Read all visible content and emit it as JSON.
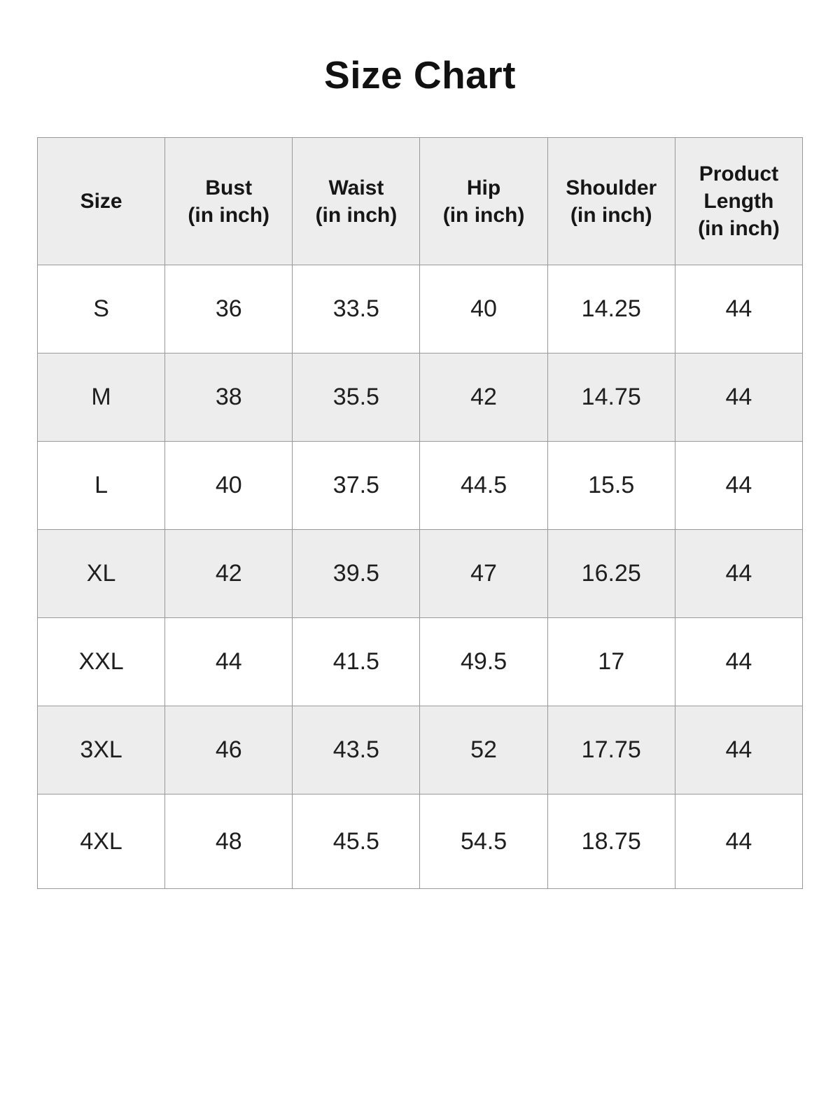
{
  "page": {
    "title": "Size Chart"
  },
  "colors": {
    "background": "#ffffff",
    "header_row_bg": "#ededed",
    "alt_row_bg": "#ededed",
    "row_bg": "#ffffff",
    "border": "#999999",
    "text": "#1f1f1f"
  },
  "size_chart": {
    "columns": [
      {
        "name": "Size",
        "unit": ""
      },
      {
        "name": "Bust",
        "unit": "(in inch)"
      },
      {
        "name": "Waist",
        "unit": "(in inch)"
      },
      {
        "name": "Hip",
        "unit": "(in inch)"
      },
      {
        "name": "Shoulder",
        "unit": "(in inch)"
      },
      {
        "name": "Product Length",
        "unit": "(in inch)"
      }
    ],
    "rows": [
      {
        "cells": [
          "S",
          "36",
          "33.5",
          "40",
          "14.25",
          "44"
        ]
      },
      {
        "cells": [
          "M",
          "38",
          "35.5",
          "42",
          "14.75",
          "44"
        ]
      },
      {
        "cells": [
          "L",
          "40",
          "37.5",
          "44.5",
          "15.5",
          "44"
        ]
      },
      {
        "cells": [
          "XL",
          "42",
          "39.5",
          "47",
          "16.25",
          "44"
        ]
      },
      {
        "cells": [
          "XXL",
          "44",
          "41.5",
          "49.5",
          "17",
          "44"
        ]
      },
      {
        "cells": [
          "3XL",
          "46",
          "43.5",
          "52",
          "17.75",
          "44"
        ]
      },
      {
        "cells": [
          "4XL",
          "48",
          "45.5",
          "54.5",
          "18.75",
          "44"
        ]
      }
    ]
  },
  "chart_data": {
    "type": "table",
    "title": "Size Chart",
    "columns": [
      "Size",
      "Bust (in inch)",
      "Waist (in inch)",
      "Hip (in inch)",
      "Shoulder (in inch)",
      "Product Length (in inch)"
    ],
    "rows": [
      [
        "S",
        36,
        33.5,
        40,
        14.25,
        44
      ],
      [
        "M",
        38,
        35.5,
        42,
        14.75,
        44
      ],
      [
        "L",
        40,
        37.5,
        44.5,
        15.5,
        44
      ],
      [
        "XL",
        42,
        39.5,
        47,
        16.25,
        44
      ],
      [
        "XXL",
        44,
        41.5,
        49.5,
        17,
        44
      ],
      [
        "3XL",
        46,
        43.5,
        52,
        17.75,
        44
      ],
      [
        "4XL",
        48,
        45.5,
        54.5,
        18.75,
        44
      ]
    ],
    "layout": {
      "alternating_row_shading": true,
      "grid": true,
      "header_shaded": true
    }
  }
}
